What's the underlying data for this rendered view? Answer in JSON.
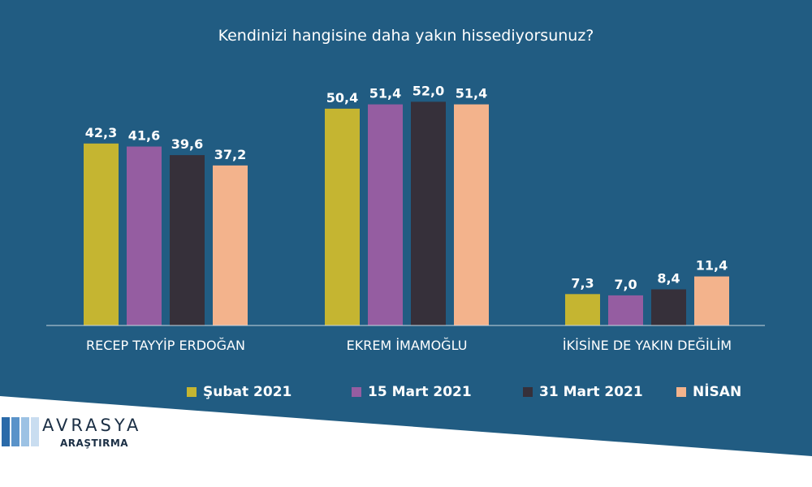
{
  "chart_data": {
    "type": "bar",
    "title": "Kendinizi hangisine daha yakın hissediyorsunuz?",
    "categories": [
      "RECEP TAYYİP ERDOĞAN",
      "EKREM İMAMOĞLU",
      "İKİSİNE DE YAKIN DEĞİLİM"
    ],
    "series": [
      {
        "name": "Şubat 2021",
        "color": "#c5b531",
        "values": [
          42.3,
          50.4,
          7.3
        ],
        "labels": [
          "42,3",
          "50,4",
          "7,3"
        ]
      },
      {
        "name": "15 Mart 2021",
        "color": "#955da1",
        "values": [
          41.6,
          51.4,
          7.0
        ],
        "labels": [
          "41,6",
          "51,4",
          "7,0"
        ]
      },
      {
        "name": "31 Mart 2021",
        "color": "#36303a",
        "values": [
          39.6,
          52.0,
          8.4
        ],
        "labels": [
          "39,6",
          "52,0",
          "8,4"
        ]
      },
      {
        "name": "NİSAN",
        "color": "#f3b38c",
        "values": [
          37.2,
          51.4,
          11.4
        ],
        "labels": [
          "37,2",
          "51,4",
          "11,4"
        ]
      }
    ],
    "ylim": [
      0,
      60
    ],
    "grid": false,
    "legend_position": "bottom"
  },
  "colors": {
    "background": "#215c82",
    "axis": "#c9d6df",
    "text": "#ffffff"
  },
  "logo": {
    "name": "AVRASYA",
    "sub": "ARAŞTIRMA",
    "bar_colors": [
      "#2a6aa9",
      "#5a93c9",
      "#9cc2e4",
      "#c9ddf0"
    ]
  }
}
